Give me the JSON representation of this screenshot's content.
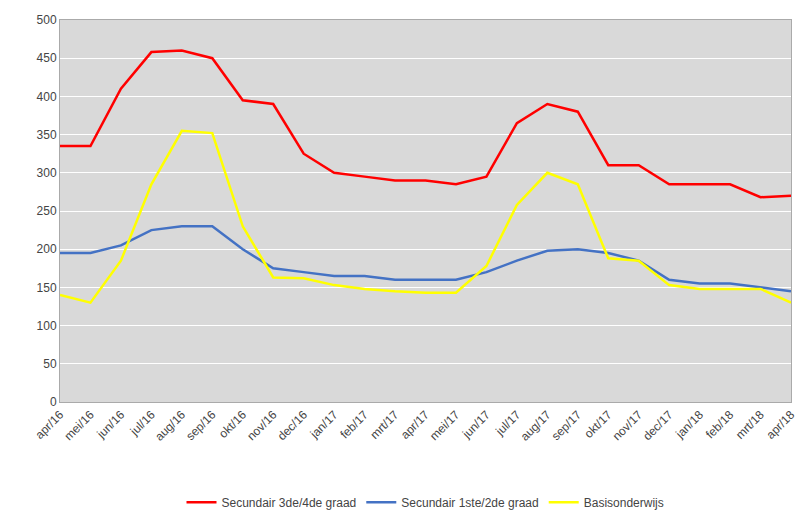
{
  "chart_data": {
    "type": "line",
    "categories": [
      "apr/16",
      "mei/16",
      "jun/16",
      "jul/16",
      "aug/16",
      "sep/16",
      "okt/16",
      "nov/16",
      "dec/16",
      "jan/17",
      "feb/17",
      "mrt/17",
      "apr/17",
      "mei/17",
      "jun/17",
      "jul/17",
      "aug/17",
      "sep/17",
      "okt/17",
      "nov/17",
      "dec/17",
      "jan/18",
      "feb/18",
      "mrt/18",
      "apr/18"
    ],
    "series": [
      {
        "name": "Secundair 3de/4de graad",
        "color": "#FF0000",
        "values": [
          335,
          335,
          410,
          458,
          460,
          450,
          395,
          390,
          325,
          300,
          295,
          290,
          290,
          285,
          295,
          365,
          390,
          380,
          310,
          310,
          285,
          285,
          285,
          268,
          270
        ]
      },
      {
        "name": "Secundair 1ste/2de graad",
        "color": "#4472C4",
        "values": [
          195,
          195,
          205,
          225,
          230,
          230,
          200,
          175,
          170,
          165,
          165,
          160,
          160,
          160,
          170,
          185,
          198,
          200,
          195,
          185,
          160,
          155,
          155,
          150,
          145
        ]
      },
      {
        "name": "Basisonderwijs",
        "color": "#FFFF00",
        "values": [
          140,
          130,
          185,
          285,
          355,
          352,
          230,
          163,
          162,
          153,
          148,
          145,
          143,
          143,
          178,
          258,
          300,
          285,
          188,
          185,
          153,
          148,
          148,
          148,
          130
        ]
      }
    ],
    "ylim": [
      0,
      500
    ],
    "yticks": [
      0,
      50,
      100,
      150,
      200,
      250,
      300,
      350,
      400,
      450,
      500
    ],
    "grid": true,
    "legend": "bottom"
  }
}
